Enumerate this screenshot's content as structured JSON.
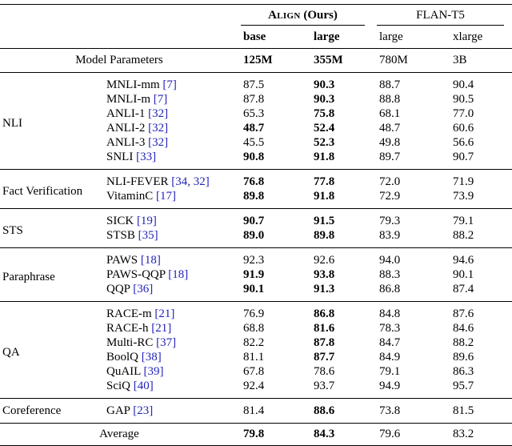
{
  "page": {
    "background": "#ffffff"
  },
  "table": {
    "cite_color": "#2222bb",
    "align_header": {
      "name": "Align",
      "suffix": " (Ours)"
    },
    "flan_header": "FLAN-T5",
    "col_headers": [
      "base",
      "large",
      "large",
      "xlarge"
    ],
    "params_row": {
      "label": "Model Parameters",
      "values": [
        "125M",
        "355M",
        "780M",
        "3B"
      ],
      "bold": [
        true,
        true,
        false,
        false
      ]
    },
    "groups": [
      {
        "name": "NLI",
        "rows": [
          {
            "dataset": "MNLI-mm",
            "cite": "[7]",
            "values": [
              "87.5",
              "90.3",
              "88.7",
              "90.4"
            ],
            "bold": [
              false,
              true,
              false,
              false
            ]
          },
          {
            "dataset": "MNLI-m",
            "cite": "[7]",
            "values": [
              "87.8",
              "90.3",
              "88.8",
              "90.5"
            ],
            "bold": [
              false,
              true,
              false,
              false
            ]
          },
          {
            "dataset": "ANLI-1",
            "cite": "[32]",
            "values": [
              "65.3",
              "75.8",
              "68.1",
              "77.0"
            ],
            "bold": [
              false,
              true,
              false,
              false
            ]
          },
          {
            "dataset": "ANLI-2",
            "cite": "[32]",
            "values": [
              "48.7",
              "52.4",
              "48.7",
              "60.6"
            ],
            "bold": [
              true,
              true,
              false,
              false
            ]
          },
          {
            "dataset": "ANLI-3",
            "cite": "[32]",
            "values": [
              "45.5",
              "52.3",
              "49.8",
              "56.6"
            ],
            "bold": [
              false,
              true,
              false,
              false
            ]
          },
          {
            "dataset": "SNLI",
            "cite": "[33]",
            "values": [
              "90.8",
              "91.8",
              "89.7",
              "90.7"
            ],
            "bold": [
              true,
              true,
              false,
              false
            ]
          }
        ]
      },
      {
        "name": "Fact Verification",
        "rows": [
          {
            "dataset": "NLI-FEVER",
            "cite": "[34, 32]",
            "values": [
              "76.8",
              "77.8",
              "72.0",
              "71.9"
            ],
            "bold": [
              true,
              true,
              false,
              false
            ]
          },
          {
            "dataset": "VitaminC",
            "cite": "[17]",
            "values": [
              "89.8",
              "91.8",
              "72.9",
              "73.9"
            ],
            "bold": [
              true,
              true,
              false,
              false
            ]
          }
        ]
      },
      {
        "name": "STS",
        "rows": [
          {
            "dataset": "SICK",
            "cite": "[19]",
            "values": [
              "90.7",
              "91.5",
              "79.3",
              "79.1"
            ],
            "bold": [
              true,
              true,
              false,
              false
            ]
          },
          {
            "dataset": "STSB",
            "cite": "[35]",
            "values": [
              "89.0",
              "89.8",
              "83.9",
              "88.2"
            ],
            "bold": [
              true,
              true,
              false,
              false
            ]
          }
        ]
      },
      {
        "name": "Paraphrase",
        "rows": [
          {
            "dataset": "PAWS",
            "cite": "[18]",
            "values": [
              "92.3",
              "92.6",
              "94.0",
              "94.6"
            ],
            "bold": [
              false,
              false,
              false,
              false
            ]
          },
          {
            "dataset": "PAWS-QQP",
            "cite": "[18]",
            "values": [
              "91.9",
              "93.8",
              "88.3",
              "90.1"
            ],
            "bold": [
              true,
              true,
              false,
              false
            ]
          },
          {
            "dataset": "QQP",
            "cite": "[36]",
            "values": [
              "90.1",
              "91.3",
              "86.8",
              "87.4"
            ],
            "bold": [
              true,
              true,
              false,
              false
            ]
          }
        ]
      },
      {
        "name": "QA",
        "rows": [
          {
            "dataset": "RACE-m",
            "cite": "[21]",
            "values": [
              "76.9",
              "86.8",
              "84.8",
              "87.6"
            ],
            "bold": [
              false,
              true,
              false,
              false
            ]
          },
          {
            "dataset": "RACE-h",
            "cite": "[21]",
            "values": [
              "68.8",
              "81.6",
              "78.3",
              "84.6"
            ],
            "bold": [
              false,
              true,
              false,
              false
            ]
          },
          {
            "dataset": "Multi-RC",
            "cite": "[37]",
            "values": [
              "82.2",
              "87.8",
              "84.7",
              "88.2"
            ],
            "bold": [
              false,
              true,
              false,
              false
            ]
          },
          {
            "dataset": "BoolQ",
            "cite": "[38]",
            "values": [
              "81.1",
              "87.7",
              "84.9",
              "89.6"
            ],
            "bold": [
              false,
              true,
              false,
              false
            ]
          },
          {
            "dataset": "QuAIL",
            "cite": "[39]",
            "values": [
              "67.8",
              "78.6",
              "79.1",
              "86.3"
            ],
            "bold": [
              false,
              false,
              false,
              false
            ]
          },
          {
            "dataset": "SciQ",
            "cite": "[40]",
            "values": [
              "92.4",
              "93.7",
              "94.9",
              "95.7"
            ],
            "bold": [
              false,
              false,
              false,
              false
            ]
          }
        ]
      },
      {
        "name": "Coreference",
        "rows": [
          {
            "dataset": "GAP",
            "cite": "[23]",
            "values": [
              "81.4",
              "88.6",
              "73.8",
              "81.5"
            ],
            "bold": [
              false,
              true,
              false,
              false
            ]
          }
        ]
      }
    ],
    "average_row": {
      "label": "Average",
      "values": [
        "79.8",
        "84.3",
        "79.6",
        "83.2"
      ],
      "bold": [
        true,
        true,
        false,
        false
      ]
    }
  }
}
